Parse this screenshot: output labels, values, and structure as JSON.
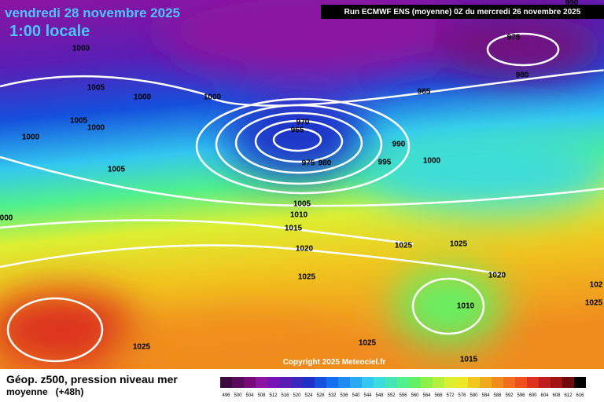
{
  "header": {
    "date": "vendredi 28 novembre 2025",
    "time": "1:00 locale",
    "run": "Run ECMWF ENS (moyenne) 0Z du mercredi 26 novembre 2025"
  },
  "map": {
    "isobar_labels": [
      "1000",
      "1005",
      "1000",
      "1000",
      "1005",
      "1000",
      "1000",
      "1005",
      "970",
      "965",
      "975",
      "980",
      "985",
      "990",
      "995",
      "1000",
      "975",
      "980",
      "1005",
      "1010",
      "1015",
      "1020",
      "1025",
      "1025",
      "1025",
      "1020",
      "1010",
      "1025",
      "1025",
      "1015",
      "000",
      "102",
      "1025",
      "990"
    ]
  },
  "copyright": "Copyright 2025 Meteociel.fr",
  "footer": {
    "title": "Géop. z500, pression niveau mer",
    "subtitle": "moyenne   (+48h)"
  },
  "scale": {
    "labels": [
      "496",
      "500",
      "504",
      "508",
      "512",
      "516",
      "520",
      "524",
      "528",
      "532",
      "536",
      "540",
      "544",
      "548",
      "552",
      "556",
      "560",
      "564",
      "568",
      "572",
      "576",
      "580",
      "584",
      "588",
      "592",
      "596",
      "600",
      "604",
      "608",
      "612",
      "616"
    ],
    "colors": [
      "#3c0a3c",
      "#5a0a5a",
      "#780a78",
      "#8c14a0",
      "#7814b4",
      "#5a1eb4",
      "#3c28be",
      "#1e32c8",
      "#1450dc",
      "#146ef0",
      "#1e8cf0",
      "#28aaf0",
      "#32c8f0",
      "#3cdcdc",
      "#46e6b4",
      "#50f08c",
      "#64f064",
      "#8cf046",
      "#b4f03c",
      "#dcf032",
      "#f0e628",
      "#f0c81e",
      "#f0aa1e",
      "#f08c1e",
      "#f06e1e",
      "#f0501e",
      "#dc321e",
      "#be1e1e",
      "#a01414",
      "#6e0a0a",
      "#000000"
    ]
  }
}
